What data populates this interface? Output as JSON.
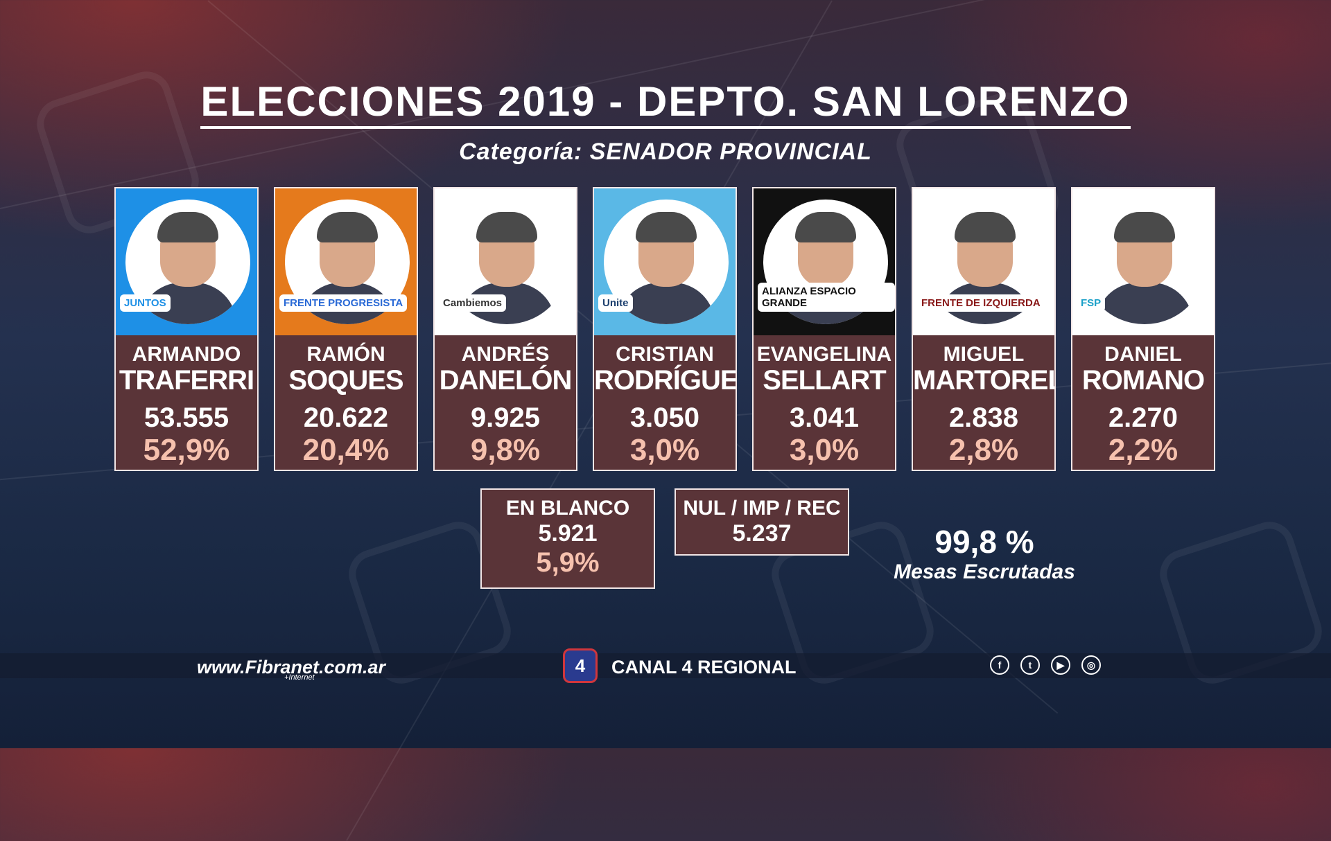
{
  "title": "ELECCIONES 2019 - DEPTO. SAN LORENZO",
  "subtitle": "Categoría: SENADOR PROVINCIAL",
  "candidates": [
    {
      "first": "ARMANDO",
      "last": "TRAFERRI",
      "votes": "53.555",
      "pct": "52,9%",
      "party": "JUNTOS",
      "bg": "#1e90e6",
      "logo_color": "#1e90e6"
    },
    {
      "first": "RAMÓN",
      "last": "SOQUES",
      "votes": "20.622",
      "pct": "20,4%",
      "party": "FRENTE PROGRESISTA",
      "bg": "#e57a1c",
      "logo_color": "#2a6ad6"
    },
    {
      "first": "ANDRÉS",
      "last": "DANELÓN",
      "votes": "9.925",
      "pct": "9,8%",
      "party": "Cambiemos",
      "bg": "#ffffff",
      "logo_color": "#333333"
    },
    {
      "first": "CRISTIAN",
      "last": "RODRÍGUEZ",
      "votes": "3.050",
      "pct": "3,0%",
      "party": "Unite",
      "bg": "#5ab8e6",
      "logo_color": "#1c3f6e"
    },
    {
      "first": "EVANGELINA",
      "last": "SELLART",
      "votes": "3.041",
      "pct": "3,0%",
      "party": "ALIANZA ESPACIO GRANDE",
      "bg": "#111111",
      "logo_color": "#111111"
    },
    {
      "first": "MIGUEL",
      "last": "MARTORELL",
      "votes": "2.838",
      "pct": "2,8%",
      "party": "FRENTE DE IZQUIERDA",
      "bg": "#ffffff",
      "logo_color": "#8a1a1a"
    },
    {
      "first": "DANIEL",
      "last": "ROMANO",
      "votes": "2.270",
      "pct": "2,2%",
      "party": "FSP",
      "bg": "#ffffff",
      "logo_color": "#1aa0c8"
    }
  ],
  "blank": {
    "label": "EN BLANCO",
    "votes": "5.921",
    "pct": "5,9%"
  },
  "null": {
    "label": "NUL / IMP / REC",
    "votes": "5.237"
  },
  "scrutiny": {
    "value": "99,8 %",
    "label": "Mesas Escrutadas"
  },
  "footer": {
    "website": "www.Fibranet.com.ar",
    "website_sub": "+Internet",
    "channel": "CANAL 4 REGIONAL",
    "channel_logo": "4",
    "socials": [
      {
        "icon": "facebook-icon",
        "glyph": "f"
      },
      {
        "icon": "twitter-icon",
        "glyph": "t"
      },
      {
        "icon": "youtube-icon",
        "glyph": "▶"
      },
      {
        "icon": "instagram-icon",
        "glyph": "◎"
      }
    ]
  }
}
